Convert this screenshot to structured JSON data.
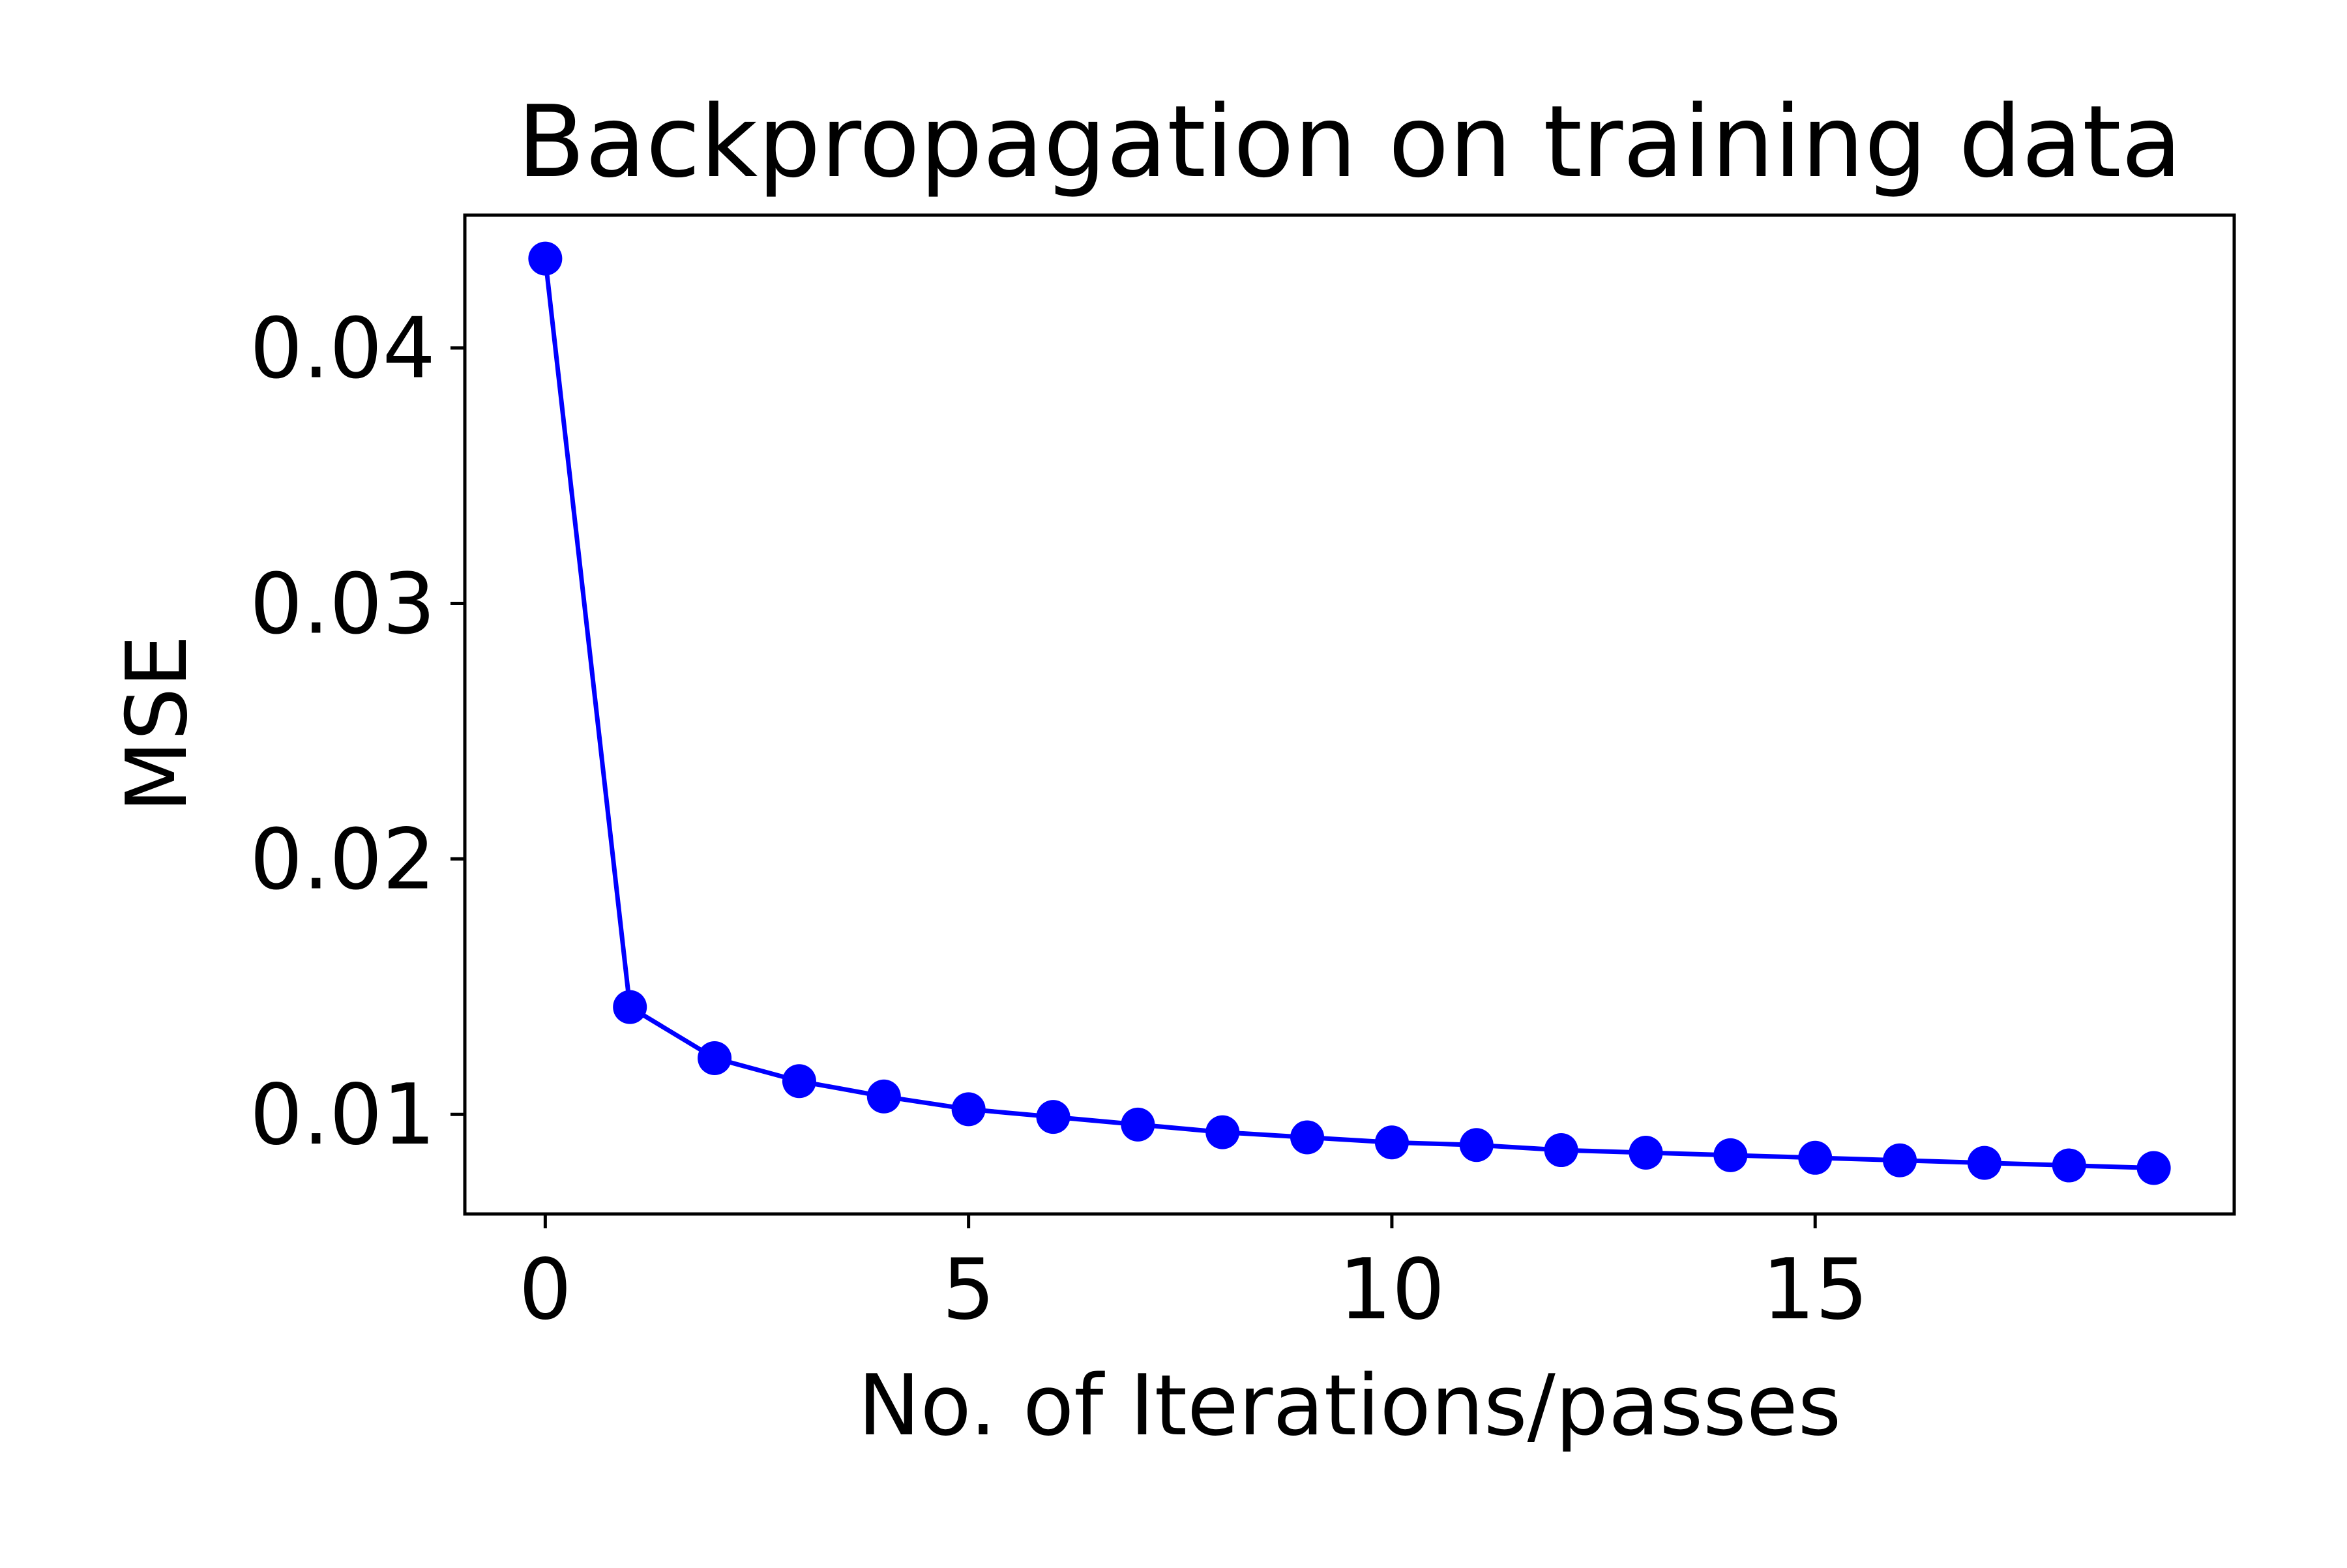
{
  "chart_data": {
    "type": "line",
    "title": "Backpropagation on training data",
    "xlabel": "No. of Iterations/passes",
    "ylabel": "MSE",
    "xlim": [
      -0.95,
      19.95
    ],
    "ylim": [
      0.0061,
      0.0452
    ],
    "xticks": [
      {
        "value": 0,
        "label": "0"
      },
      {
        "value": 5,
        "label": "5"
      },
      {
        "value": 10,
        "label": "10"
      },
      {
        "value": 15,
        "label": "15"
      }
    ],
    "yticks": [
      {
        "value": 0.01,
        "label": "0.01"
      },
      {
        "value": 0.02,
        "label": "0.02"
      },
      {
        "value": 0.03,
        "label": "0.03"
      },
      {
        "value": 0.04,
        "label": "0.04"
      }
    ],
    "grid": false,
    "legend": "none",
    "series": [
      {
        "color": "#0000ff",
        "marker": "circle",
        "x": [
          0,
          1,
          2,
          3,
          4,
          5,
          6,
          7,
          8,
          9,
          10,
          11,
          12,
          13,
          14,
          15,
          16,
          17,
          18,
          19
        ],
        "y": [
          0.0435,
          0.0142,
          0.0122,
          0.0113,
          0.0107,
          0.0102,
          0.0099,
          0.0096,
          0.0093,
          0.0091,
          0.0089,
          0.0088,
          0.0086,
          0.0085,
          0.0084,
          0.0083,
          0.0082,
          0.0081,
          0.008,
          0.0079
        ]
      }
    ]
  }
}
